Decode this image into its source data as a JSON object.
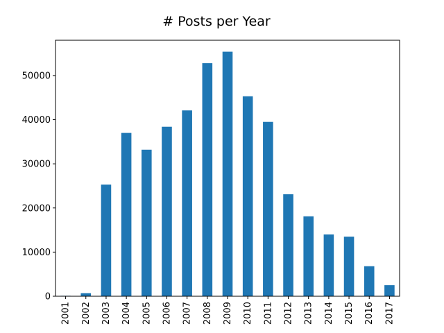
{
  "chart_data": {
    "type": "bar",
    "title": "# Posts per Year",
    "xlabel": "",
    "ylabel": "",
    "categories": [
      "2001",
      "2002",
      "2003",
      "2004",
      "2005",
      "2006",
      "2007",
      "2008",
      "2009",
      "2010",
      "2011",
      "2012",
      "2013",
      "2014",
      "2015",
      "2016",
      "2017"
    ],
    "values": [
      100,
      700,
      25300,
      37000,
      33200,
      38400,
      42100,
      52800,
      55400,
      45300,
      39500,
      23100,
      18100,
      14000,
      13500,
      6800,
      2500
    ],
    "ylim": [
      0,
      58000
    ],
    "yticks": [
      0,
      10000,
      20000,
      30000,
      40000,
      50000
    ],
    "ytick_labels": [
      "0",
      "10000",
      "20000",
      "30000",
      "40000",
      "50000"
    ],
    "grid": false,
    "bar_color": "#1f77b4"
  }
}
